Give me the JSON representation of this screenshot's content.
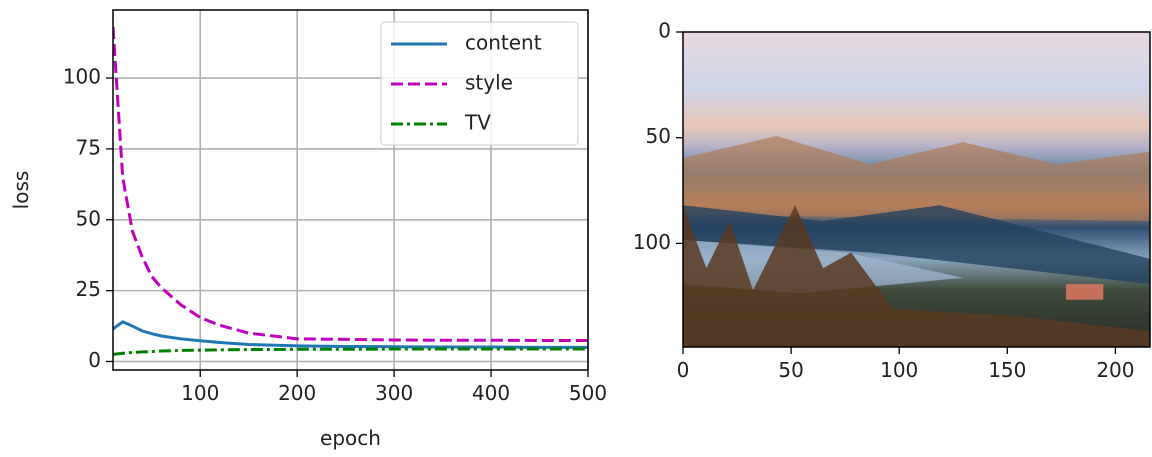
{
  "chart_data": [
    {
      "type": "line",
      "xlabel": "epoch",
      "ylabel": "loss",
      "x": [
        10,
        20,
        30,
        40,
        50,
        60,
        80,
        100,
        120,
        150,
        200,
        250,
        300,
        350,
        400,
        450,
        500
      ],
      "series": [
        {
          "name": "content",
          "color": "#1f77b4",
          "linestyle": "solid",
          "values": [
            11.5,
            14,
            12.5,
            10.8,
            9.8,
            9,
            8,
            7.3,
            6.7,
            6,
            5.5,
            5.3,
            5.2,
            5.1,
            5.1,
            5,
            5
          ]
        },
        {
          "name": "style",
          "color": "#bf00bf",
          "linestyle": "dashed",
          "values": [
            118,
            65,
            46,
            37,
            30,
            26,
            20,
            15.5,
            12.8,
            10,
            8,
            7.8,
            7.6,
            7.5,
            7.5,
            7.4,
            7.4
          ]
        },
        {
          "name": "TV",
          "color": "#008000",
          "linestyle": "dashdot",
          "values": [
            2.5,
            2.9,
            3.2,
            3.4,
            3.5,
            3.7,
            3.9,
            4,
            4.1,
            4.2,
            4.3,
            4.3,
            4.4,
            4.4,
            4.4,
            4.4,
            4.4
          ]
        }
      ],
      "xlim": [
        10,
        500
      ],
      "ylim": [
        -3,
        124
      ],
      "xticks": [
        100,
        200,
        300,
        400,
        500
      ],
      "yticks": [
        0,
        25,
        50,
        75,
        100
      ],
      "grid": true,
      "legend": "upper right"
    },
    {
      "type": "image",
      "xlim": [
        0,
        216
      ],
      "ylim": [
        149,
        0
      ],
      "xticks": [
        0,
        50,
        100,
        150,
        200
      ],
      "yticks": [
        0,
        50,
        100
      ],
      "grid": false
    }
  ]
}
